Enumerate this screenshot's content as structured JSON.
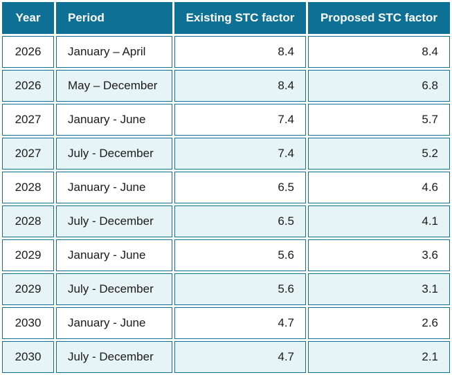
{
  "table": {
    "columns": [
      {
        "id": "year",
        "label": "Year"
      },
      {
        "id": "period",
        "label": "Period"
      },
      {
        "id": "existing",
        "label": "Existing STC factor"
      },
      {
        "id": "proposed",
        "label": "Proposed STC factor"
      }
    ],
    "rows": [
      {
        "year": "2026",
        "period": "January – April",
        "existing": "8.4",
        "proposed": "8.4"
      },
      {
        "year": "2026",
        "period": "May – December",
        "existing": "8.4",
        "proposed": "6.8"
      },
      {
        "year": "2027",
        "period": "January - June",
        "existing": "7.4",
        "proposed": "5.7"
      },
      {
        "year": "2027",
        "period": "July - December",
        "existing": "7.4",
        "proposed": "5.2"
      },
      {
        "year": "2028",
        "period": "January - June",
        "existing": "6.5",
        "proposed": "4.6"
      },
      {
        "year": "2028",
        "period": "July - December",
        "existing": "6.5",
        "proposed": "4.1"
      },
      {
        "year": "2029",
        "period": "January - June",
        "existing": "5.6",
        "proposed": "3.6"
      },
      {
        "year": "2029",
        "period": "July - December",
        "existing": "5.6",
        "proposed": "3.1"
      },
      {
        "year": "2030",
        "period": "January - June",
        "existing": "4.7",
        "proposed": "2.6"
      },
      {
        "year": "2030",
        "period": "July - December",
        "existing": "4.7",
        "proposed": "2.1"
      }
    ]
  },
  "colors": {
    "header_bg": "#0e7094",
    "header_text": "#ffffff",
    "cell_border": "#0e7094",
    "row_bg": "#ffffff",
    "alt_row_bg": "#e6f4f6",
    "body_text": "#1b1b1b",
    "page_bg": "#ffffff"
  }
}
